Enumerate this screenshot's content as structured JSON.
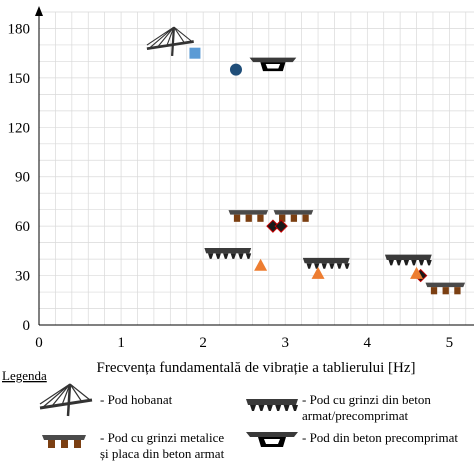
{
  "chart_data": {
    "type": "scatter",
    "xlabel": "Frecvența fundamentală de vibrație a tablierului [Hz]",
    "ylabel": "",
    "xlim": [
      0,
      5.3
    ],
    "ylim": [
      0,
      190
    ],
    "xticks": [
      "0",
      "1",
      "2",
      "3",
      "4",
      "5"
    ],
    "yticks": [
      "0",
      "30",
      "60",
      "90",
      "120",
      "150",
      "180"
    ],
    "grid": true,
    "series": [
      {
        "marker": "square",
        "color": "#5b9bd5",
        "points": [
          {
            "x": 1.9,
            "y": 165
          }
        ]
      },
      {
        "marker": "circle",
        "color": "#1f4e79",
        "points": [
          {
            "x": 2.4,
            "y": 155
          }
        ]
      },
      {
        "marker": "diamond",
        "color": "#1a1a1a",
        "points": [
          {
            "x": 2.85,
            "y": 60
          },
          {
            "x": 2.95,
            "y": 60
          },
          {
            "x": 4.65,
            "y": 30
          }
        ]
      },
      {
        "marker": "triangle",
        "color": "#ed7d31",
        "points": [
          {
            "x": 2.7,
            "y": 36
          },
          {
            "x": 3.4,
            "y": 31
          },
          {
            "x": 4.6,
            "y": 31
          }
        ]
      }
    ],
    "bridge_icons": [
      {
        "icon": "cable-stayed",
        "x": 1.6,
        "y": 171
      },
      {
        "icon": "prestressed-box",
        "x": 2.85,
        "y": 159
      },
      {
        "icon": "steel-girder",
        "x": 2.55,
        "y": 67
      },
      {
        "icon": "steel-girder",
        "x": 3.1,
        "y": 67
      },
      {
        "icon": "concrete-girder",
        "x": 2.3,
        "y": 44
      },
      {
        "icon": "concrete-girder",
        "x": 3.5,
        "y": 38
      },
      {
        "icon": "concrete-girder",
        "x": 4.5,
        "y": 40
      },
      {
        "icon": "steel-girder",
        "x": 4.95,
        "y": 23
      }
    ],
    "legend": {
      "title": "Legenda",
      "items": [
        {
          "icon": "cable-stayed",
          "text": [
            "- Pod hobanat"
          ]
        },
        {
          "icon": "concrete-girder",
          "text": [
            "- Pod cu grinzi din beton",
            "armat/precomprimat"
          ]
        },
        {
          "icon": "steel-girder",
          "text": [
            "- Pod cu grinzi metalice",
            "și placa din beton armat"
          ]
        },
        {
          "icon": "prestressed-box",
          "text": [
            "- Pod din beton precomprimat"
          ]
        }
      ]
    }
  }
}
